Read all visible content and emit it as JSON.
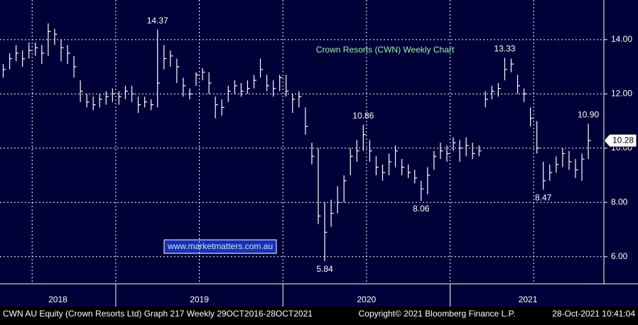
{
  "chart_data": {
    "type": "ohlc",
    "title": "Crown Resorts (CWN) Weekly Chart",
    "watermark": "www.marketmatters.com.au",
    "footer_left": "CWN AU Equity (Crown Resorts Ltd) Graph 217  Weekly 29OCT2016-28OCT2021",
    "footer_center": "Copyright© 2021 Bloomberg Finance L.P.",
    "footer_right": "28-Oct-2021 10:41:04",
    "color": "#ffffff",
    "ylim": [
      5.0,
      15.46
    ],
    "yticks": [
      {
        "value": 6,
        "label": "6.00"
      },
      {
        "value": 8,
        "label": "8.00"
      },
      {
        "value": 10,
        "label": "10.00"
      },
      {
        "value": 12,
        "label": "12.00"
      },
      {
        "value": 14,
        "label": "14.00"
      }
    ],
    "grid": true,
    "periods": [
      {
        "label": "2018",
        "close": [
          12.9,
          13.3,
          13.5,
          13.3,
          13.6,
          13.7,
          13.5,
          14.3,
          14.2,
          13.7,
          13.5,
          13.0,
          12.1,
          11.7,
          11.6,
          11.8,
          11.9,
          12.0
        ],
        "high": [
          13.1,
          13.5,
          13.8,
          13.6,
          13.9,
          13.9,
          13.8,
          14.6,
          14.4,
          14.0,
          13.8,
          13.4,
          12.5,
          12.0,
          11.9,
          12.0,
          12.1,
          12.2
        ],
        "low": [
          12.6,
          12.9,
          13.2,
          13.0,
          13.3,
          13.4,
          13.1,
          13.4,
          13.8,
          13.2,
          13.1,
          12.6,
          11.7,
          11.5,
          11.4,
          11.5,
          11.6,
          11.7
        ],
        "high_labels": [
          null,
          null,
          null,
          null,
          null,
          null,
          null,
          null,
          null,
          null,
          null,
          null,
          null,
          null,
          null,
          null,
          null,
          null
        ],
        "low_labels": [
          null,
          null,
          null,
          null,
          null,
          null,
          null,
          null,
          null,
          null,
          null,
          null,
          null,
          null,
          null,
          null,
          null,
          null
        ]
      },
      {
        "label": "2019",
        "close": [
          11.9,
          12.1,
          12.0,
          11.6,
          11.7,
          11.6,
          12.4,
          13.3,
          13.4,
          13.0,
          12.3,
          12.0,
          12.7,
          12.8,
          12.4,
          11.6,
          11.5,
          12.1,
          12.3,
          12.1,
          12.2,
          12.5,
          12.9,
          12.3,
          12.2,
          12.6
        ],
        "high": [
          12.1,
          12.3,
          12.3,
          11.9,
          11.9,
          11.8,
          14.37,
          13.8,
          13.6,
          13.3,
          12.6,
          12.2,
          12.8,
          12.95,
          12.8,
          11.9,
          11.8,
          12.3,
          12.5,
          12.4,
          12.5,
          12.7,
          13.3,
          12.7,
          12.5,
          12.7
        ],
        "low": [
          11.6,
          11.8,
          11.7,
          11.3,
          11.5,
          11.4,
          11.5,
          12.9,
          13.0,
          12.4,
          11.9,
          11.8,
          12.3,
          12.5,
          12.0,
          11.1,
          11.2,
          11.7,
          12.0,
          11.9,
          12.0,
          12.2,
          12.6,
          12.1,
          11.9,
          12.1
        ],
        "high_labels": [
          null,
          null,
          null,
          null,
          null,
          null,
          "14.37",
          null,
          null,
          null,
          null,
          null,
          null,
          null,
          null,
          null,
          null,
          null,
          null,
          null,
          null,
          null,
          null,
          null,
          null,
          null
        ],
        "low_labels": [
          null,
          null,
          null,
          null,
          null,
          null,
          null,
          null,
          null,
          null,
          null,
          null,
          null,
          null,
          null,
          null,
          null,
          null,
          null,
          null,
          null,
          null,
          null,
          null,
          null,
          null
        ]
      },
      {
        "label": "2020",
        "close": [
          12.1,
          11.8,
          11.9,
          10.8,
          9.7,
          7.5,
          6.9,
          7.6,
          8.0,
          8.8,
          9.7,
          9.9,
          10.5,
          9.9,
          9.3,
          9.1,
          9.5,
          9.9,
          9.3,
          9.1,
          8.9,
          8.5,
          9.0,
          9.7,
          9.9,
          9.8
        ],
        "high": [
          12.7,
          12.0,
          12.1,
          11.5,
          10.2,
          10.0,
          8.0,
          8.1,
          8.6,
          9.0,
          10.0,
          10.3,
          10.86,
          10.3,
          9.7,
          9.4,
          9.8,
          10.1,
          9.6,
          9.4,
          9.2,
          8.8,
          9.3,
          9.9,
          10.2,
          10.1
        ],
        "low": [
          11.9,
          11.3,
          11.5,
          10.5,
          9.4,
          7.2,
          5.84,
          7.1,
          7.6,
          8.0,
          9.0,
          9.5,
          9.9,
          9.5,
          9.0,
          8.8,
          9.0,
          9.3,
          9.0,
          8.9,
          8.7,
          8.06,
          8.3,
          9.2,
          9.6,
          9.5
        ],
        "high_labels": [
          null,
          null,
          null,
          null,
          null,
          null,
          null,
          null,
          null,
          null,
          null,
          null,
          "10.86",
          null,
          null,
          null,
          null,
          null,
          null,
          null,
          null,
          null,
          null,
          null,
          null,
          null
        ],
        "low_labels": [
          null,
          null,
          null,
          null,
          null,
          null,
          "5.84",
          null,
          null,
          null,
          null,
          null,
          null,
          null,
          null,
          null,
          null,
          null,
          null,
          null,
          null,
          "8.06",
          null,
          null,
          null,
          null
        ]
      },
      {
        "label": "2021",
        "close": [
          10.2,
          10.0,
          10.1,
          9.8,
          9.9,
          11.8,
          12.1,
          12.2,
          12.9,
          13.1,
          12.3,
          12.0,
          11.1,
          10.0,
          8.8,
          9.1,
          9.4,
          9.8,
          9.5,
          9.2,
          9.6,
          10.28
        ],
        "high": [
          10.4,
          10.3,
          10.4,
          10.2,
          10.1,
          12.1,
          12.3,
          12.4,
          13.33,
          13.3,
          12.7,
          12.2,
          11.5,
          11.0,
          9.5,
          9.4,
          9.7,
          10.0,
          9.9,
          9.6,
          9.8,
          10.9
        ],
        "low": [
          9.9,
          9.5,
          9.7,
          9.6,
          9.7,
          11.5,
          11.8,
          11.9,
          12.5,
          12.8,
          12.0,
          11.7,
          10.8,
          9.8,
          8.47,
          8.8,
          9.1,
          9.3,
          9.2,
          8.9,
          8.8,
          9.6
        ],
        "high_labels": [
          null,
          null,
          null,
          null,
          null,
          null,
          null,
          null,
          "13.33",
          null,
          null,
          null,
          null,
          null,
          null,
          null,
          null,
          null,
          null,
          null,
          null,
          "10.90"
        ],
        "low_labels": [
          null,
          null,
          null,
          null,
          null,
          null,
          null,
          null,
          null,
          null,
          null,
          null,
          null,
          null,
          "8.47",
          null,
          null,
          null,
          null,
          null,
          null,
          null
        ]
      }
    ]
  }
}
